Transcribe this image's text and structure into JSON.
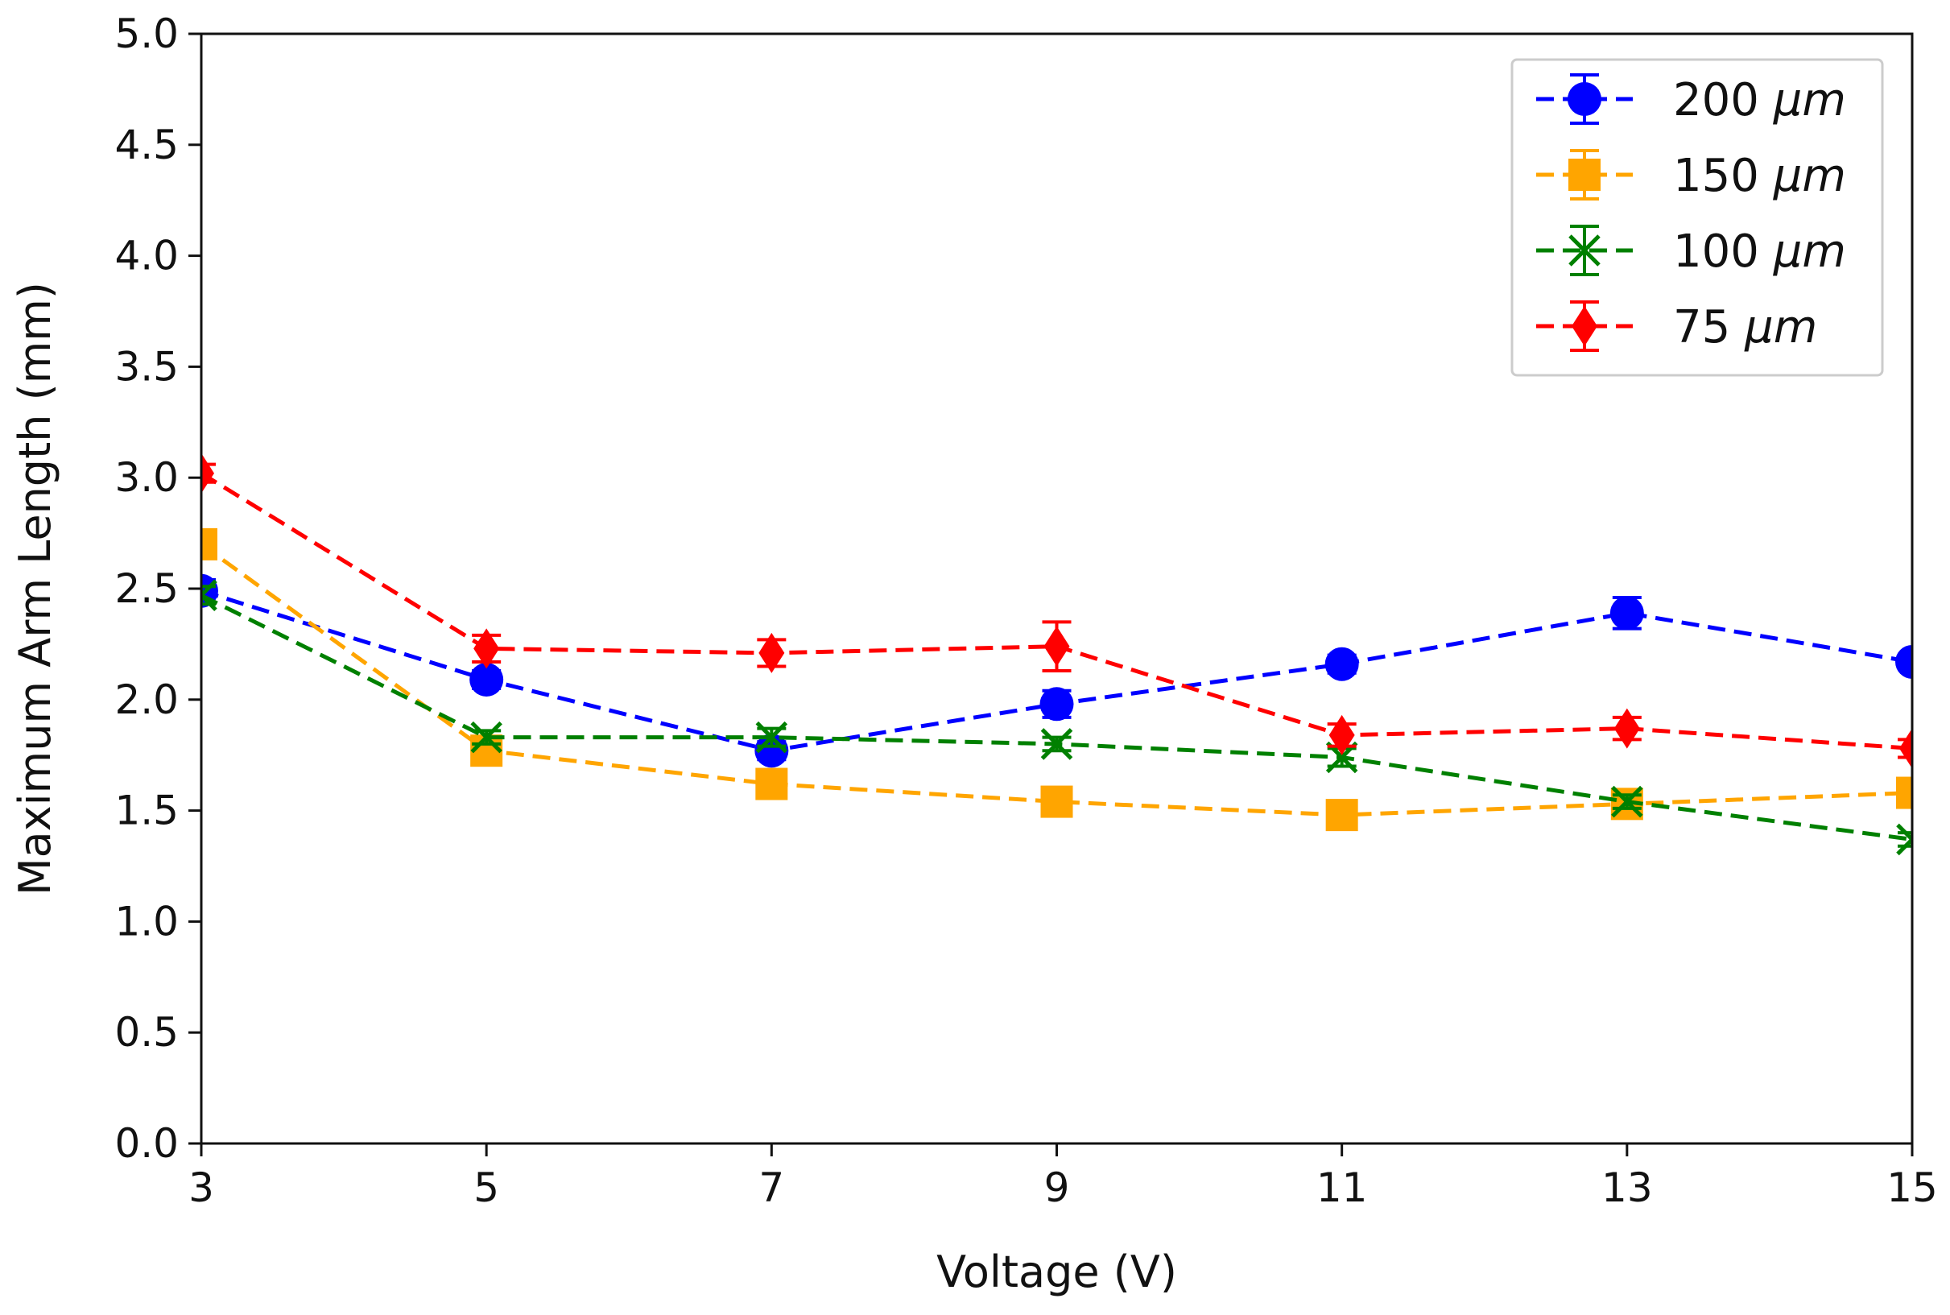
{
  "chart_data": {
    "type": "line",
    "title": "",
    "xlabel": "Voltage (V)",
    "ylabel": "Maximum Arm Length (mm)",
    "x": [
      3,
      5,
      7,
      9,
      11,
      13,
      15
    ],
    "xlim": [
      3,
      15
    ],
    "ylim": [
      0,
      5
    ],
    "xticks": [
      "3",
      "5",
      "7",
      "9",
      "11",
      "13",
      "15"
    ],
    "yticks": [
      "0.0",
      "0.5",
      "1.0",
      "1.5",
      "2.0",
      "2.5",
      "3.0",
      "3.5",
      "4.0",
      "4.5",
      "5.0"
    ],
    "grid": false,
    "legend_position": "top-right",
    "series": [
      {
        "name": "200 μm",
        "legend_number": "200",
        "legend_unit": "μm",
        "color": "#0000ff",
        "marker": "circle",
        "values": [
          2.49,
          2.09,
          1.77,
          1.98,
          2.16,
          2.39,
          2.17
        ],
        "errors": [
          0.05,
          0.04,
          0.04,
          0.06,
          0.04,
          0.07,
          0.03
        ]
      },
      {
        "name": "150 μm",
        "legend_number": "150",
        "legend_unit": "μm",
        "color": "#ffa500",
        "marker": "square",
        "values": [
          2.7,
          1.77,
          1.62,
          1.54,
          1.48,
          1.53,
          1.58
        ],
        "errors": [
          0.05,
          0.04,
          0.05,
          0.04,
          0.04,
          0.04,
          0.04
        ]
      },
      {
        "name": "100 μm",
        "legend_number": "100",
        "legend_unit": "μm",
        "color": "#008000",
        "marker": "x",
        "values": [
          2.47,
          1.83,
          1.83,
          1.8,
          1.74,
          1.54,
          1.37
        ],
        "errors": [
          0.04,
          0.03,
          0.04,
          0.03,
          0.04,
          0.03,
          0.03
        ]
      },
      {
        "name": "75 μm",
        "legend_number": "75",
        "legend_unit": "μm",
        "color": "#ff0000",
        "marker": "diamond",
        "values": [
          3.02,
          2.23,
          2.21,
          2.24,
          1.84,
          1.87,
          1.78
        ],
        "errors": [
          0.04,
          0.06,
          0.06,
          0.11,
          0.05,
          0.05,
          0.04
        ]
      }
    ]
  }
}
